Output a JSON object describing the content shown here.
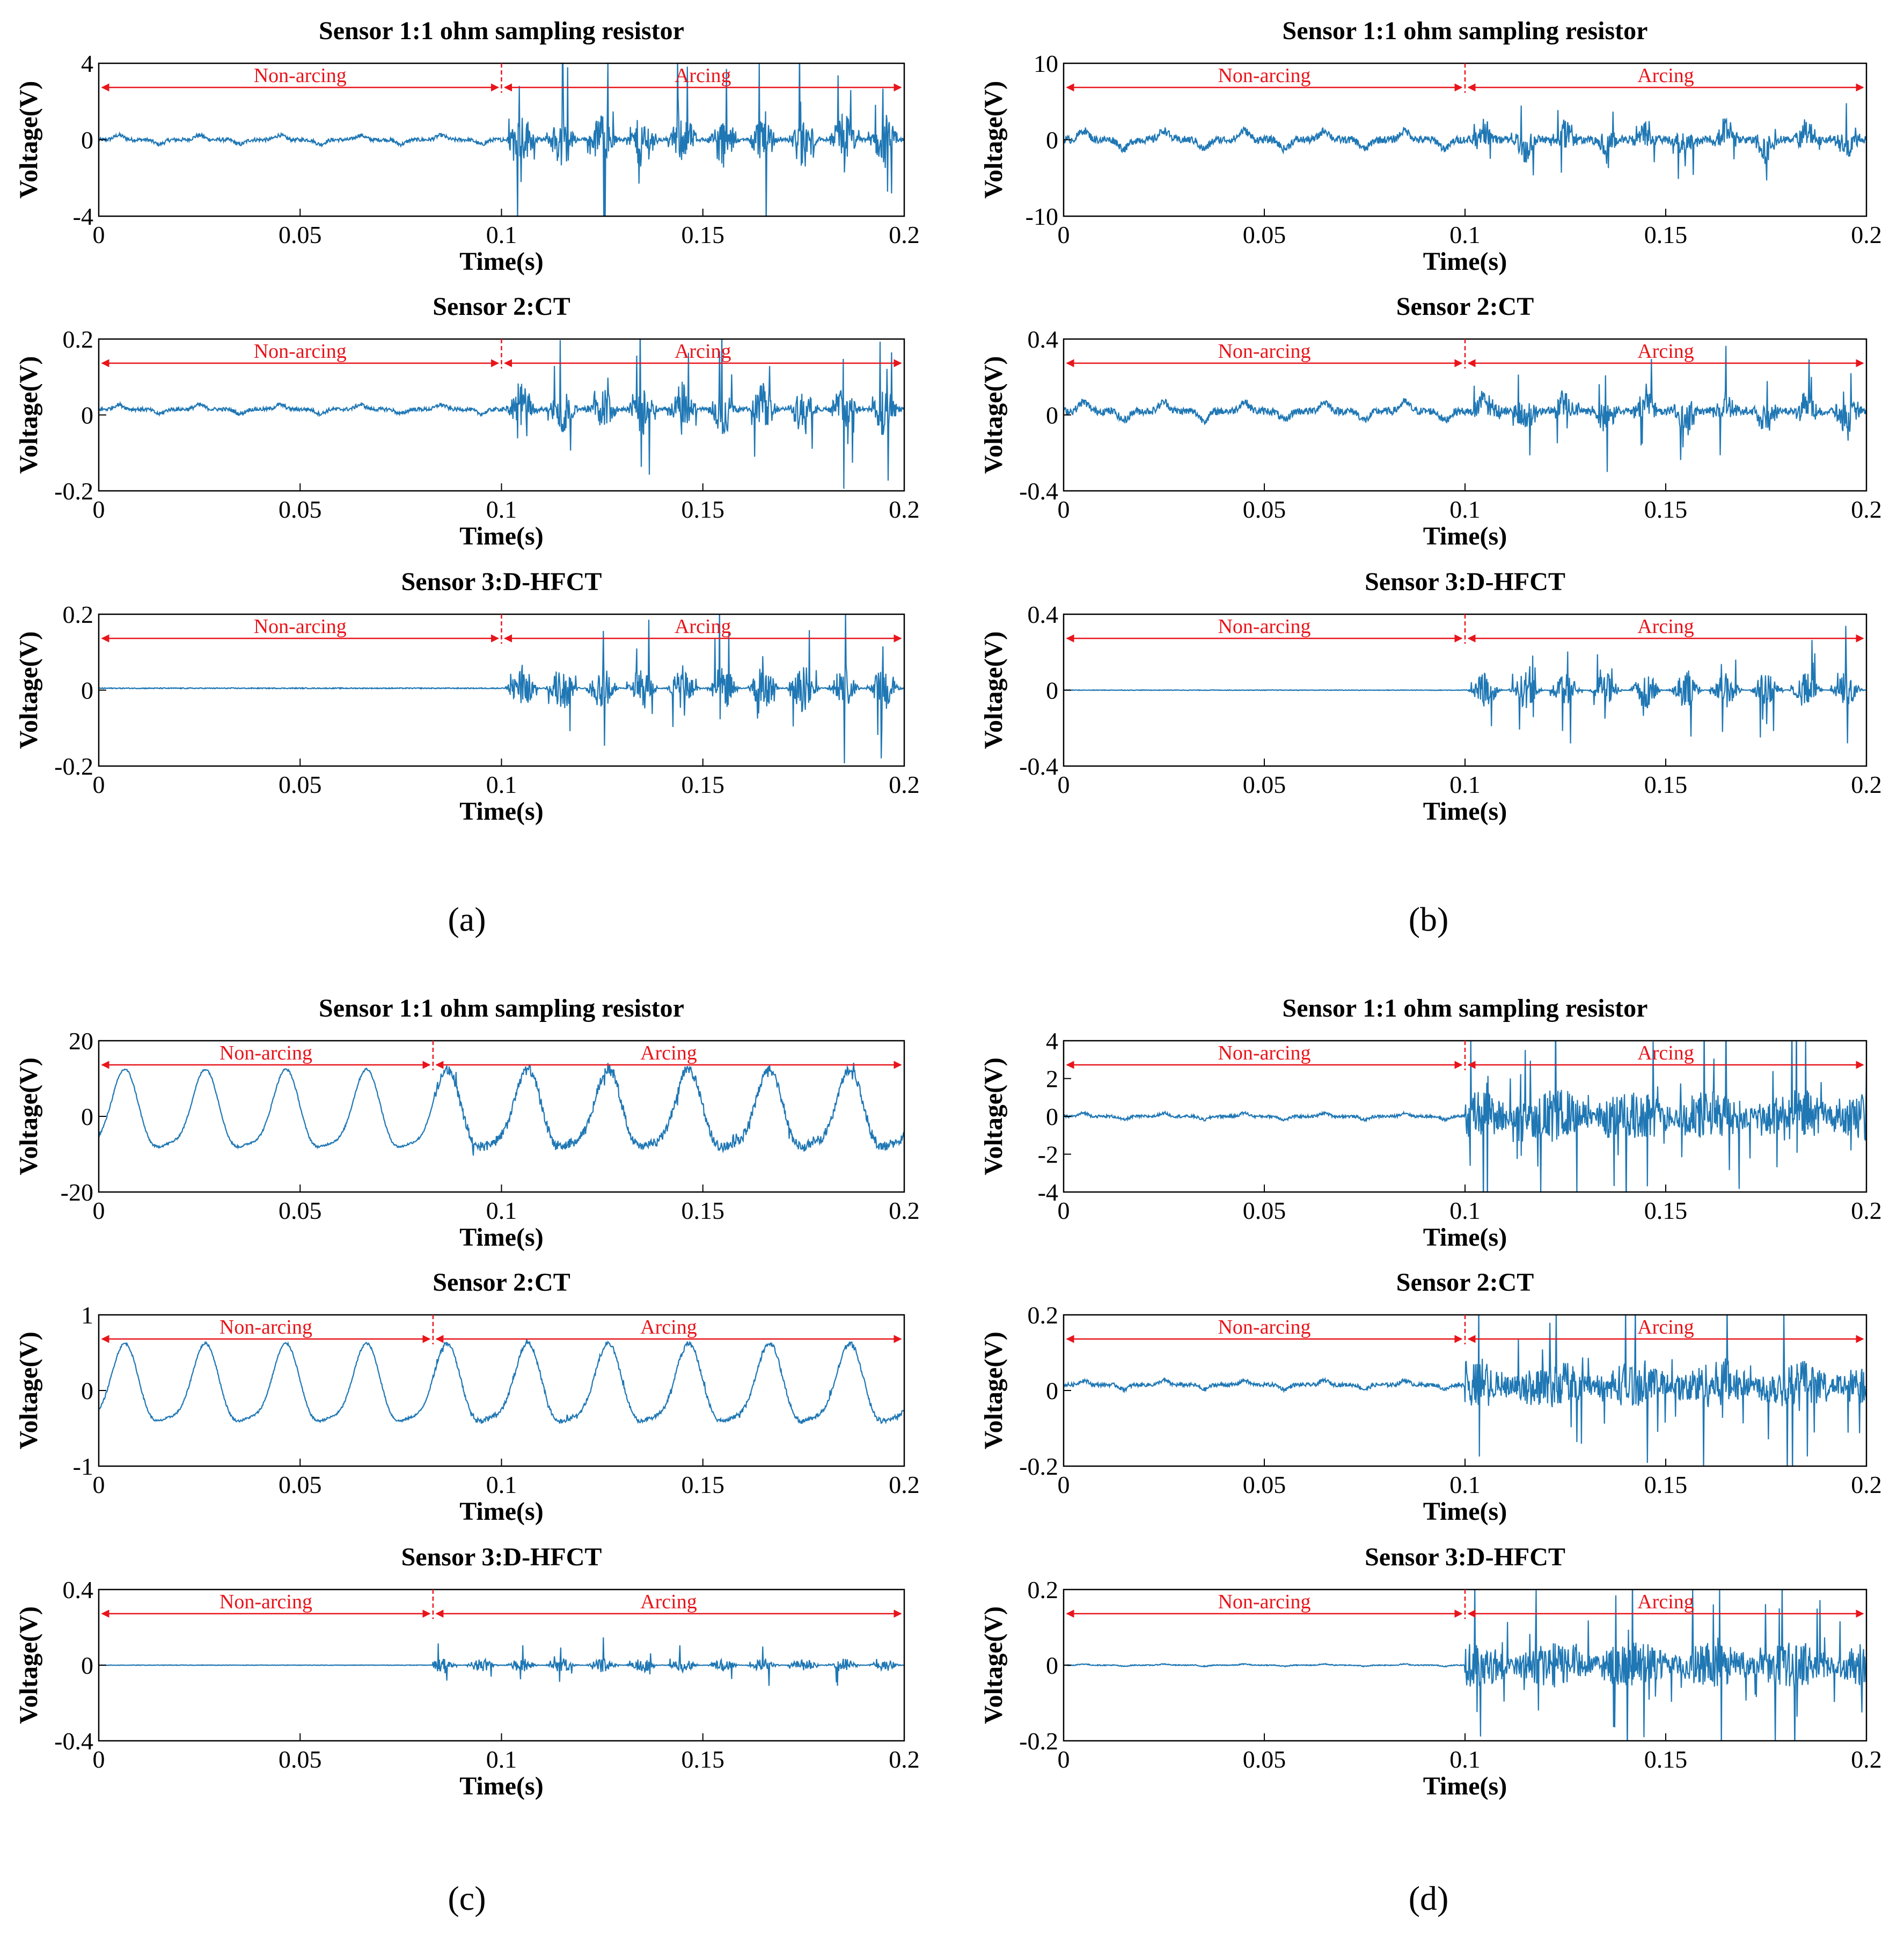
{
  "figure": {
    "captions": [
      "(a)",
      "(b)",
      "(c)",
      "(d)"
    ]
  },
  "colors": {
    "signal": "#1f77b4",
    "annotation": "#e8151b",
    "axis": "#000000"
  },
  "chart_data": [
    {
      "id": "a1",
      "panel": "(a)",
      "type": "line",
      "title": "Sensor 1:1 ohm sampling resistor",
      "xlabel": "Time(s)",
      "ylabel": "Voltage(V)",
      "xlim": [
        0,
        0.2
      ],
      "ylim": [
        -4,
        4
      ],
      "xticks": [
        "0",
        "0.05",
        "0.1",
        "0.15",
        "0.2"
      ],
      "yticks": [
        "4",
        "0",
        "-4"
      ],
      "arc_start": 0.1,
      "non_arcing_label": "Non-arcing",
      "arcing_label": "Arcing",
      "series": [
        {
          "name": "Sensor 1",
          "baseline": 0,
          "normal_amplitude": 0.4,
          "arcing_amplitude": 4.5,
          "waveform": "bumps",
          "period": 0.02
        }
      ]
    },
    {
      "id": "a2",
      "panel": "(a)",
      "type": "line",
      "title": "Sensor 2:CT",
      "xlabel": "Time(s)",
      "ylabel": "Voltage(V)",
      "xlim": [
        0,
        0.2
      ],
      "ylim": [
        -0.2,
        0.2
      ],
      "xticks": [
        "0",
        "0.05",
        "0.1",
        "0.15",
        "0.2"
      ],
      "yticks": [
        "0.2",
        "0",
        "-0.2"
      ],
      "arc_start": 0.1,
      "non_arcing_label": "Non-arcing",
      "arcing_label": "Arcing",
      "series": [
        {
          "name": "Sensor 2",
          "baseline": 0.015,
          "normal_amplitude": 0.02,
          "arcing_amplitude": 0.2,
          "waveform": "bumps",
          "period": 0.02
        }
      ]
    },
    {
      "id": "a3",
      "panel": "(a)",
      "type": "line",
      "title": "Sensor 3:D-HFCT",
      "xlabel": "Time(s)",
      "ylabel": "Voltage(V)",
      "xlim": [
        0,
        0.2
      ],
      "ylim": [
        -0.2,
        0.2
      ],
      "xticks": [
        "0",
        "0.05",
        "0.1",
        "0.15",
        "0.2"
      ],
      "yticks": [
        "0.2",
        "0",
        "-0.2"
      ],
      "arc_start": 0.1,
      "non_arcing_label": "Non-arcing",
      "arcing_label": "Arcing",
      "series": [
        {
          "name": "Sensor 3",
          "baseline": 0.005,
          "normal_amplitude": 0.005,
          "arcing_amplitude": 0.2,
          "waveform": "noise",
          "period": 0.02
        }
      ]
    },
    {
      "id": "b1",
      "panel": "(b)",
      "type": "line",
      "title": "Sensor 1:1 ohm sampling resistor",
      "xlabel": "Time(s)",
      "ylabel": "Voltage(V)",
      "xlim": [
        0,
        0.2
      ],
      "ylim": [
        -10,
        10
      ],
      "xticks": [
        "0",
        "0.05",
        "0.1",
        "0.15",
        "0.2"
      ],
      "yticks": [
        "10",
        "0",
        "-10"
      ],
      "arc_start": 0.1,
      "non_arcing_label": "Non-arcing",
      "arcing_label": "Arcing",
      "series": [
        {
          "name": "Sensor 1",
          "baseline": 0,
          "normal_amplitude": 2,
          "arcing_amplitude": 6,
          "waveform": "bumps",
          "period": 0.02
        }
      ]
    },
    {
      "id": "b2",
      "panel": "(b)",
      "type": "line",
      "title": "Sensor 2:CT",
      "xlabel": "Time(s)",
      "ylabel": "Voltage(V)",
      "xlim": [
        0,
        0.2
      ],
      "ylim": [
        -0.4,
        0.4
      ],
      "xticks": [
        "0",
        "0.05",
        "0.1",
        "0.15",
        "0.2"
      ],
      "yticks": [
        "0.4",
        "0",
        "-0.4"
      ],
      "arc_start": 0.1,
      "non_arcing_label": "Non-arcing",
      "arcing_label": "Arcing",
      "series": [
        {
          "name": "Sensor 2",
          "baseline": 0.02,
          "normal_amplitude": 0.08,
          "arcing_amplitude": 0.25,
          "waveform": "bumps",
          "period": 0.02
        }
      ]
    },
    {
      "id": "b3",
      "panel": "(b)",
      "type": "line",
      "title": "Sensor 3:D-HFCT",
      "xlabel": "Time(s)",
      "ylabel": "Voltage(V)",
      "xlim": [
        0,
        0.2
      ],
      "ylim": [
        -0.4,
        0.4
      ],
      "xticks": [
        "0",
        "0.05",
        "0.1",
        "0.15",
        "0.2"
      ],
      "yticks": [
        "0.4",
        "0",
        "-0.4"
      ],
      "arc_start": 0.1,
      "non_arcing_label": "Non-arcing",
      "arcing_label": "Arcing",
      "series": [
        {
          "name": "Sensor 3",
          "baseline": 0,
          "normal_amplitude": 0.006,
          "arcing_amplitude": 0.32,
          "waveform": "noise",
          "period": 0.02
        }
      ]
    },
    {
      "id": "c1",
      "panel": "(c)",
      "type": "line",
      "title": "Sensor 1:1 ohm sampling resistor",
      "xlabel": "Time(s)",
      "ylabel": "Voltage(V)",
      "xlim": [
        0,
        0.2
      ],
      "ylim": [
        -20,
        20
      ],
      "xticks": [
        "0",
        "0.05",
        "0.1",
        "0.15",
        "0.2"
      ],
      "yticks": [
        "20",
        "0",
        "-20"
      ],
      "arc_start": 0.083,
      "non_arcing_label": "Non-arcing",
      "arcing_label": "Arcing",
      "series": [
        {
          "name": "Sensor 1",
          "baseline": 0,
          "normal_amplitude": 10,
          "arcing_amplitude": 2.5,
          "waveform": "sine",
          "period": 0.02
        }
      ]
    },
    {
      "id": "c2",
      "panel": "(c)",
      "type": "line",
      "title": "Sensor 2:CT",
      "xlabel": "Time(s)",
      "ylabel": "Voltage(V)",
      "xlim": [
        0,
        0.2
      ],
      "ylim": [
        -1,
        1
      ],
      "xticks": [
        "0",
        "0.05",
        "0.1",
        "0.15",
        "0.2"
      ],
      "yticks": [
        "1",
        "0",
        "-1"
      ],
      "arc_start": 0.083,
      "non_arcing_label": "Non-arcing",
      "arcing_label": "Arcing",
      "series": [
        {
          "name": "Sensor 2",
          "baseline": 0,
          "normal_amplitude": 0.5,
          "arcing_amplitude": 0.05,
          "waveform": "sine",
          "period": 0.02
        }
      ]
    },
    {
      "id": "c3",
      "panel": "(c)",
      "type": "line",
      "title": "Sensor 3:D-HFCT",
      "xlabel": "Time(s)",
      "ylabel": "Voltage(V)",
      "xlim": [
        0,
        0.2
      ],
      "ylim": [
        -0.4,
        0.4
      ],
      "xticks": [
        "0",
        "0.05",
        "0.1",
        "0.15",
        "0.2"
      ],
      "yticks": [
        "0.4",
        "0",
        "-0.4"
      ],
      "arc_start": 0.083,
      "non_arcing_label": "Non-arcing",
      "arcing_label": "Arcing",
      "series": [
        {
          "name": "Sensor 3",
          "baseline": 0,
          "normal_amplitude": 0.005,
          "arcing_amplitude": 0.12,
          "waveform": "noise",
          "period": 0.02
        }
      ]
    },
    {
      "id": "d1",
      "panel": "(d)",
      "type": "line",
      "title": "Sensor 1:1 ohm sampling resistor",
      "xlabel": "Time(s)",
      "ylabel": "Voltage(V)",
      "xlim": [
        0,
        0.2
      ],
      "ylim": [
        -4,
        4
      ],
      "xticks": [
        "0",
        "0.05",
        "0.1",
        "0.15",
        "0.2"
      ],
      "yticks": [
        "4",
        "2",
        "0",
        "-2",
        "-4"
      ],
      "arc_start": 0.1,
      "non_arcing_label": "Non-arcing",
      "arcing_label": "Arcing",
      "series": [
        {
          "name": "Sensor 1",
          "baseline": 0,
          "normal_amplitude": 0.3,
          "arcing_amplitude": 4.5,
          "waveform": "dense",
          "period": 0.02
        }
      ]
    },
    {
      "id": "d2",
      "panel": "(d)",
      "type": "line",
      "title": "Sensor 2:CT",
      "xlabel": "Time(s)",
      "ylabel": "Voltage(V)",
      "xlim": [
        0,
        0.2
      ],
      "ylim": [
        -0.2,
        0.2
      ],
      "xticks": [
        "0",
        "0.05",
        "0.1",
        "0.15",
        "0.2"
      ],
      "yticks": [
        "0.2",
        "0",
        "-0.2"
      ],
      "arc_start": 0.1,
      "non_arcing_label": "Non-arcing",
      "arcing_label": "Arcing",
      "series": [
        {
          "name": "Sensor 2",
          "baseline": 0.015,
          "normal_amplitude": 0.02,
          "arcing_amplitude": 0.2,
          "waveform": "dense",
          "period": 0.02
        }
      ]
    },
    {
      "id": "d3",
      "panel": "(d)",
      "type": "line",
      "title": "Sensor 3:D-HFCT",
      "xlabel": "Time(s)",
      "ylabel": "Voltage(V)",
      "xlim": [
        0,
        0.2
      ],
      "ylim": [
        -0.2,
        0.2
      ],
      "xticks": [
        "0",
        "0.05",
        "0.1",
        "0.15",
        "0.2"
      ],
      "yticks": [
        "0.2",
        "0",
        "-0.2"
      ],
      "arc_start": 0.1,
      "non_arcing_label": "Non-arcing",
      "arcing_label": "Arcing",
      "series": [
        {
          "name": "Sensor 3",
          "baseline": 0,
          "normal_amplitude": 0.005,
          "arcing_amplitude": 0.2,
          "waveform": "dense",
          "period": 0.02
        }
      ]
    }
  ]
}
